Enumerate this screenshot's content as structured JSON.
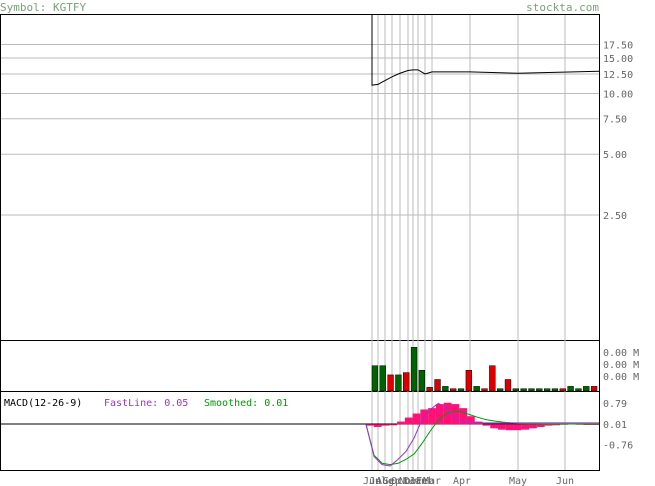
{
  "header": {
    "symbol_label": "Symbol: KGTFY",
    "site": "stockta.com"
  },
  "chart_data": [
    {
      "type": "line",
      "name": "price",
      "yscale": "log",
      "yticks": [
        "17.50",
        "15.00",
        "12.50",
        "10.00",
        "7.50",
        "5.00",
        "2.50"
      ],
      "ytick_values": [
        17.5,
        15.0,
        12.5,
        10.0,
        7.5,
        5.0,
        2.5
      ],
      "ylim": [
        0.6,
        19.5
      ],
      "xticks": [
        "Jun",
        "Jul",
        "Aug",
        "Sep",
        "Oct",
        "Nov",
        "Dec",
        "Jan",
        "Feb",
        "Mar",
        "Apr",
        "May",
        "Jun"
      ],
      "gridline_months": [
        "Jun",
        "Jul",
        "Aug",
        "Sep",
        "Oct",
        "Nov",
        "Dec",
        "Jan",
        "Feb",
        "Mar",
        "Apr",
        "May",
        "Jun"
      ],
      "x": [
        "Jun",
        "Jul",
        "Aug",
        "Sep",
        "Oct",
        "Nov",
        "Dec",
        "Jan",
        "Feb",
        "Mar",
        "Apr",
        "May",
        "Jun"
      ],
      "series": [
        {
          "values": [
            11.0,
            11.1,
            11.6,
            12.1,
            12.6,
            13.0,
            13.1,
            13.1,
            12.5,
            12.8,
            12.8,
            12.6,
            12.9
          ],
          "color": "#000000"
        }
      ],
      "note_entry": "pre-history vertical line from top at Jun start"
    },
    {
      "type": "bar",
      "name": "volume",
      "yticks": [
        "0.00 M",
        "0.00 M",
        "0.00 M",
        "0.00 M"
      ],
      "up_color": "#006400",
      "down_color": "#dd0000",
      "values": [
        0.55,
        0.55,
        0.35,
        0.35,
        0.4,
        0.95,
        0.45,
        0.08,
        0.25,
        0.1,
        0.05,
        0.05,
        0.45,
        0.1,
        0.05,
        0.55,
        0.05,
        0.25,
        0.05,
        0.05,
        0.05,
        0.05,
        0.05,
        0.05,
        0.05,
        0.1,
        0.05,
        0.1,
        0.1
      ],
      "colors": [
        "up",
        "up",
        "down",
        "up",
        "down",
        "up",
        "up",
        "down",
        "down",
        "up",
        "down",
        "up",
        "down",
        "up",
        "down",
        "down",
        "up",
        "down",
        "up",
        "up",
        "up",
        "up",
        "up",
        "up",
        "down",
        "up",
        "up",
        "up",
        "down"
      ]
    },
    {
      "type": "line",
      "name": "MACD",
      "title": "MACD(12-26-9)",
      "fastline_label": "FastLine: 0.05",
      "smoothed_label": "Smoothed: 0.01",
      "fast_color": "#9933cc",
      "smooth_color": "#009900",
      "hist_color": "#ff1177",
      "yticks": [
        "0.79",
        "0.01",
        "-0.76"
      ],
      "ytick_values": [
        0.79,
        0.01,
        -0.76
      ],
      "ylim": [
        -1.7,
        1.2
      ],
      "fast": [
        0,
        -1.2,
        -1.5,
        -1.55,
        -1.3,
        -1.0,
        -0.5,
        0.2,
        0.55,
        0.78,
        0.6,
        0.25,
        0.12,
        0.06,
        0.05,
        0.05,
        0.05,
        0.05,
        0.05,
        0.05,
        0.05,
        0.05,
        0.05,
        0.05,
        0.05,
        0.05,
        0.05,
        0.05,
        0.05,
        0.05
      ],
      "smoothed": [
        0,
        -1.15,
        -1.45,
        -1.5,
        -1.45,
        -1.3,
        -1.1,
        -0.7,
        -0.25,
        0.15,
        0.4,
        0.5,
        0.45,
        0.35,
        0.25,
        0.17,
        0.12,
        0.08,
        0.05,
        0.03,
        0.02,
        0.02,
        0.01,
        0.01,
        0.01,
        0.01,
        0.01,
        0.01,
        0.01,
        0.01
      ],
      "histogram": [
        -0.05,
        -0.1,
        -0.05,
        0.0,
        0.1,
        0.25,
        0.4,
        0.55,
        0.6,
        0.75,
        0.8,
        0.75,
        0.6,
        0.3,
        0.1,
        -0.05,
        -0.15,
        -0.2,
        -0.22,
        -0.22,
        -0.2,
        -0.15,
        -0.1,
        -0.05,
        -0.02,
        0.02,
        0.03,
        0.02,
        0.01,
        0.01
      ]
    }
  ]
}
